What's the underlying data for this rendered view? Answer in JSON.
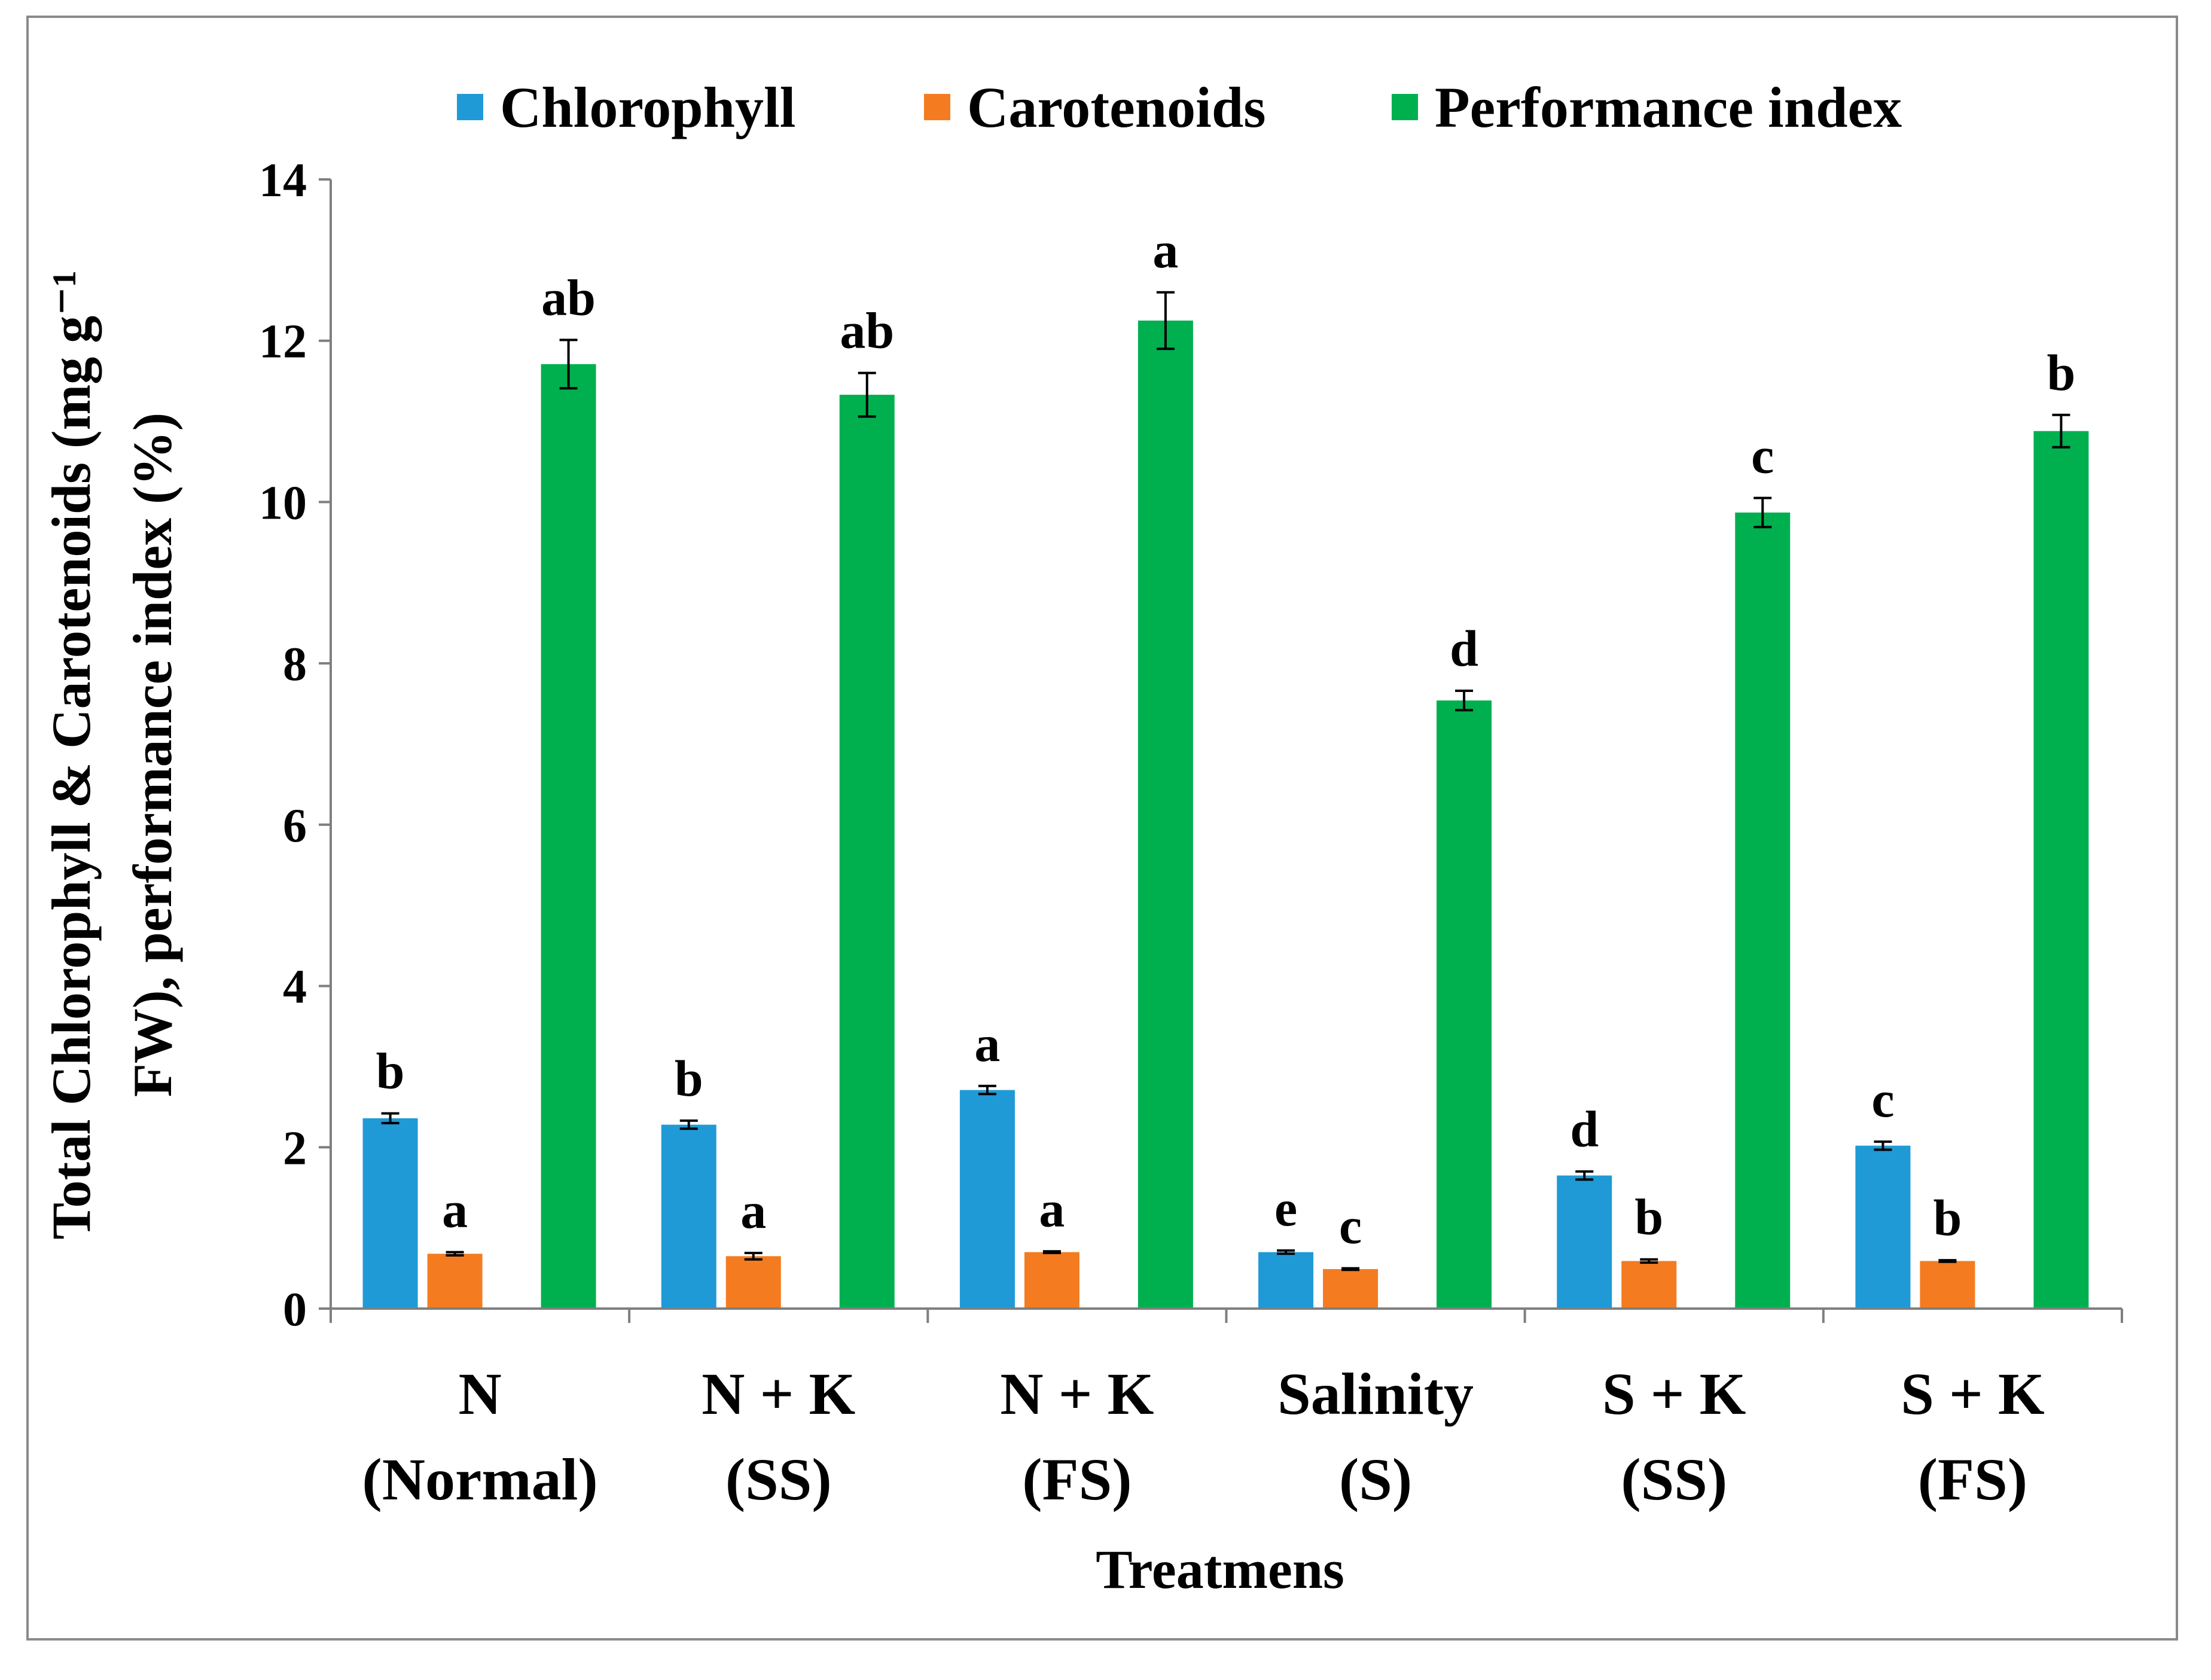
{
  "chart_data": {
    "type": "bar",
    "xlabel": "Treatmens",
    "ylabel_lines": [
      "Total  Chlorophyll  & Carotenoids  (mg g⁻¹",
      "FW), performance  index (%)"
    ],
    "ylim": [
      0,
      14
    ],
    "yticks": [
      "0",
      "2",
      "4",
      "6",
      "8",
      "10",
      "12",
      "14"
    ],
    "categories": [
      [
        "N",
        "(Normal)"
      ],
      [
        "N + K",
        "(SS)"
      ],
      [
        "N + K",
        "(FS)"
      ],
      [
        "Salinity",
        "(S)"
      ],
      [
        "S + K",
        "(SS)"
      ],
      [
        "S + K",
        "(FS)"
      ]
    ],
    "series": [
      {
        "name": "Chlorophyll",
        "color": "#1F9AD6",
        "values": [
          2.36,
          2.28,
          2.71,
          0.7,
          1.65,
          2.02
        ],
        "errors": [
          0.06,
          0.05,
          0.05,
          0.02,
          0.05,
          0.05
        ],
        "letters": [
          "b",
          "b",
          "a",
          "e",
          "d",
          "c"
        ]
      },
      {
        "name": "Carotenoids",
        "color": "#F47B20",
        "values": [
          0.68,
          0.65,
          0.7,
          0.49,
          0.59,
          0.59
        ],
        "errors": [
          0.02,
          0.04,
          0.01,
          0.01,
          0.02,
          0.01
        ],
        "letters": [
          "a",
          "a",
          "a",
          "c",
          "b",
          "b"
        ]
      },
      {
        "name": "Performance index",
        "color": "#00B04F",
        "values": [
          11.71,
          11.33,
          12.25,
          7.54,
          9.87,
          10.88
        ],
        "errors": [
          0.3,
          0.27,
          0.35,
          0.12,
          0.18,
          0.2
        ],
        "letters": [
          "ab",
          "ab",
          "a",
          "d",
          "c",
          "b"
        ]
      }
    ],
    "legend_position": "top"
  }
}
